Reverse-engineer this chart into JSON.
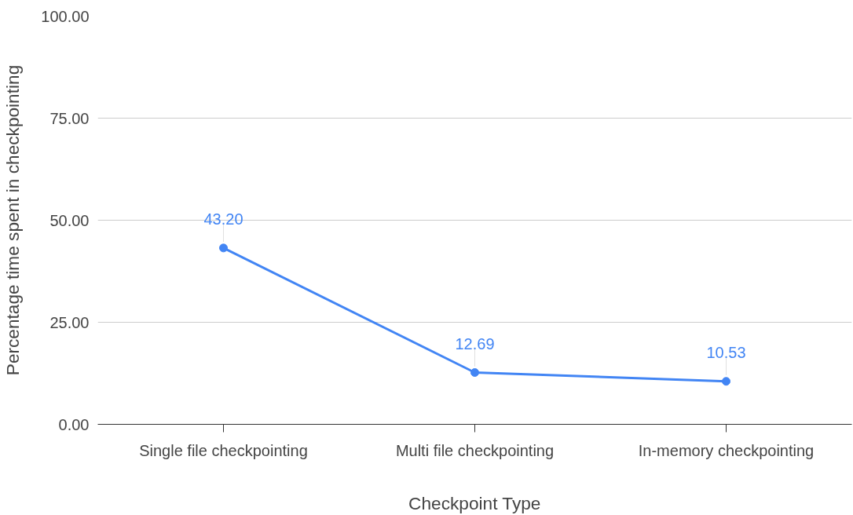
{
  "chart_data": {
    "type": "line",
    "xlabel": "Checkpoint Type",
    "ylabel": "Percentage time spent in checkpointing",
    "categories": [
      "Single file checkpointing",
      "Multi file checkpointing",
      "In-memory checkpointing"
    ],
    "series": [
      {
        "color": "#4285f4",
        "values": [
          43.2,
          12.69,
          10.53
        ],
        "value_labels": [
          "43.20",
          "12.69",
          "10.53"
        ]
      }
    ],
    "ylim": [
      0,
      100
    ],
    "yticks": [
      {
        "value": 0,
        "label": "0.00"
      },
      {
        "value": 25,
        "label": "25.00"
      },
      {
        "value": 50,
        "label": "50.00"
      },
      {
        "value": 75,
        "label": "75.00"
      },
      {
        "value": 100,
        "label": "100.00"
      }
    ],
    "grid": "y",
    "marker": "circle"
  }
}
